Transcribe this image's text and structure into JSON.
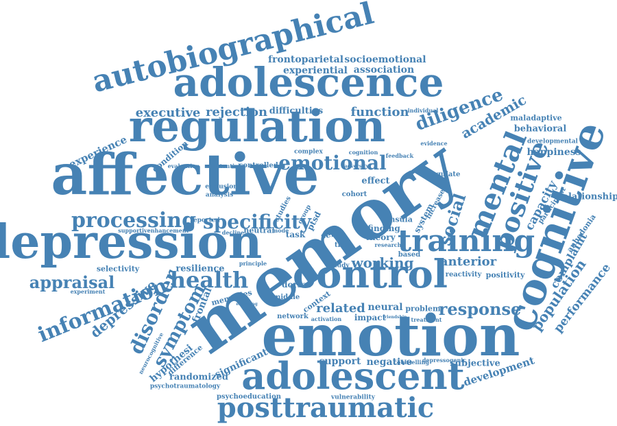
{
  "word_cloud": {
    "color": "#4682b4",
    "words": [
      {
        "text": "memory"
      },
      {
        "text": "emotion"
      },
      {
        "text": "affective"
      },
      {
        "text": "regulation"
      },
      {
        "text": "adolescence"
      },
      {
        "text": "depression"
      },
      {
        "text": "adolescent"
      },
      {
        "text": "control"
      },
      {
        "text": "cognitive"
      },
      {
        "text": "posttraumatic"
      },
      {
        "text": "autobiographical"
      },
      {
        "text": "training"
      },
      {
        "text": "processing"
      },
      {
        "text": "health"
      },
      {
        "text": "information"
      },
      {
        "text": "specificity"
      },
      {
        "text": "mental"
      },
      {
        "text": "positive"
      },
      {
        "text": "emotional"
      },
      {
        "text": "disorder"
      },
      {
        "text": "symptom"
      },
      {
        "text": "depressive"
      },
      {
        "text": "appraisal"
      },
      {
        "text": "diligence"
      },
      {
        "text": "social"
      },
      {
        "text": "response"
      },
      {
        "text": "working"
      },
      {
        "text": "anterior"
      },
      {
        "text": "population"
      },
      {
        "text": "performance"
      },
      {
        "text": "complaint"
      },
      {
        "text": "academic"
      },
      {
        "text": "executive"
      },
      {
        "text": "rejection"
      },
      {
        "text": "function"
      },
      {
        "text": "frontoparietal"
      },
      {
        "text": "socioemotional"
      },
      {
        "text": "experiential"
      },
      {
        "text": "association"
      },
      {
        "text": "difficulties"
      },
      {
        "text": "experience"
      },
      {
        "text": "capacity"
      },
      {
        "text": "behavioral"
      },
      {
        "text": "maladaptive"
      },
      {
        "text": "relationship"
      },
      {
        "text": "happiness"
      },
      {
        "text": "developmental"
      },
      {
        "text": "anhedonia"
      },
      {
        "text": "participant"
      },
      {
        "text": "reactivity"
      },
      {
        "text": "positivity"
      },
      {
        "text": "development"
      },
      {
        "text": "subjective"
      },
      {
        "text": "negative"
      },
      {
        "text": "support"
      },
      {
        "text": "related"
      },
      {
        "text": "neural"
      },
      {
        "text": "impact"
      },
      {
        "text": "problem"
      },
      {
        "text": "treatment"
      },
      {
        "text": "frontal"
      },
      {
        "text": "significant"
      },
      {
        "text": "randomized"
      },
      {
        "text": "hypothesi"
      },
      {
        "text": "difference"
      },
      {
        "text": "psychotraumatology"
      },
      {
        "text": "psychoeducation"
      },
      {
        "text": "vulnerability"
      },
      {
        "text": "counselling"
      },
      {
        "text": "depressogenic"
      },
      {
        "text": "resilience"
      },
      {
        "text": "selectivity"
      },
      {
        "text": "experiment"
      },
      {
        "text": "neurocognitive"
      },
      {
        "text": "condition"
      },
      {
        "text": "evaluation"
      },
      {
        "text": "potential"
      },
      {
        "text": "controlled"
      },
      {
        "text": "exclusion"
      },
      {
        "text": "analysis"
      },
      {
        "text": "supportive"
      },
      {
        "text": "enhancement"
      },
      {
        "text": "reported"
      },
      {
        "text": "adversity"
      },
      {
        "text": "effect"
      },
      {
        "text": "cohort"
      },
      {
        "text": "theory"
      },
      {
        "text": "research"
      },
      {
        "text": "finding"
      },
      {
        "text": "based"
      },
      {
        "text": "system"
      },
      {
        "text": "increase"
      },
      {
        "text": "cingulate"
      },
      {
        "text": "insula"
      },
      {
        "text": "context"
      },
      {
        "text": "network"
      },
      {
        "text": "activation"
      },
      {
        "text": "middle"
      },
      {
        "text": "dorsal"
      },
      {
        "text": "memories"
      },
      {
        "text": "task"
      },
      {
        "text": "self"
      },
      {
        "text": "ptsd"
      },
      {
        "text": "neutral"
      },
      {
        "text": "mode"
      },
      {
        "text": "study"
      },
      {
        "text": "trial"
      },
      {
        "text": "complex"
      },
      {
        "text": "feedback"
      },
      {
        "text": "cognition"
      },
      {
        "text": "individual"
      },
      {
        "text": "evidence"
      },
      {
        "text": "studies"
      },
      {
        "text": "group"
      },
      {
        "text": "decline"
      },
      {
        "text": "principle"
      },
      {
        "text": "friendship"
      },
      {
        "text": "engaging"
      }
    ]
  }
}
